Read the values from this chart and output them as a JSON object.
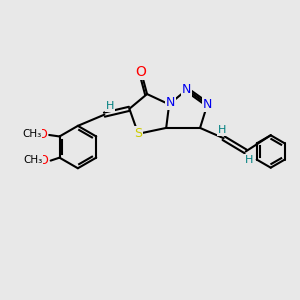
{
  "bg_color": "#e8e8e8",
  "bond_color": "#000000",
  "atom_colors": {
    "O": "#ff0000",
    "N": "#0000ee",
    "S": "#cccc00",
    "H": "#008080",
    "C": "#000000"
  },
  "figsize": [
    3.0,
    3.0
  ],
  "dpi": 100
}
